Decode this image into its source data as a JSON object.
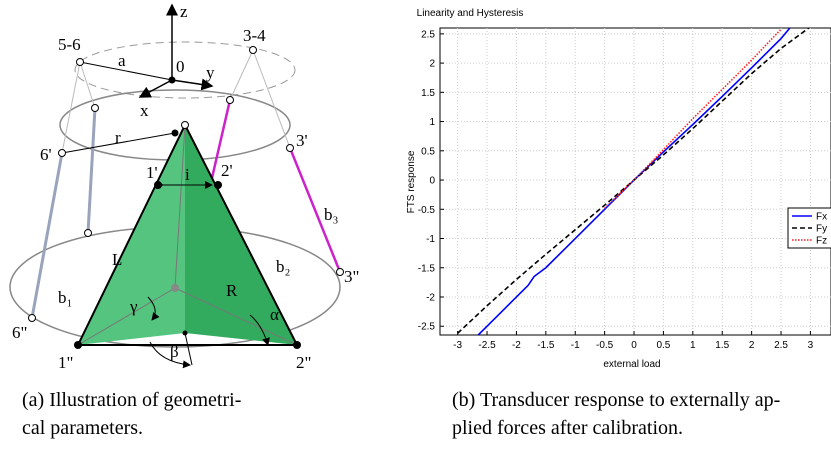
{
  "figure_a": {
    "labels": {
      "z": "z",
      "x": "x",
      "y": "y",
      "o": "0",
      "p56": "5-6",
      "p34": "3-4",
      "a": "a",
      "r": "r",
      "p6p": "6'",
      "p3p": "3'",
      "p1p": "1'",
      "p2p": "2'",
      "i": "i",
      "L": "L",
      "b1": "b₁",
      "b2": "b₂",
      "b3": "b₃",
      "R": "R",
      "gamma": "γ",
      "alpha": "α",
      "beta": "β",
      "p1pp": "1\"",
      "p2pp": "2\"",
      "p3pp": "3\"",
      "p6pp": "6\""
    }
  },
  "chart_data": {
    "type": "line",
    "title": "Linearity and Hysteresis",
    "x_label": "external load",
    "y_label": "FTS response",
    "xlim": [
      -3.3,
      3.35
    ],
    "ylim": [
      -2.65,
      2.6
    ],
    "xticks": [
      -3,
      -2.5,
      -2,
      -1.5,
      -1,
      -0.5,
      0,
      0.5,
      1,
      1.5,
      2,
      2.5,
      3
    ],
    "yticks": [
      -2.5,
      -2,
      -1.5,
      -1,
      -0.5,
      0,
      0.5,
      1,
      1.5,
      2,
      2.5
    ],
    "grid": true,
    "legend": "right",
    "series": [
      {
        "name": "Fx",
        "color": "#0000ff",
        "dash": "solid",
        "x": [
          -2.65,
          -2.3,
          -2.0,
          -1.8,
          -1.7,
          -1.5,
          -1.0,
          -0.5,
          0,
          0.5,
          1,
          1.5,
          2,
          2.5,
          2.65
        ],
        "values": [
          -2.65,
          -2.3,
          -2.0,
          -1.8,
          -1.65,
          -1.5,
          -1.0,
          -0.5,
          0,
          0.48,
          0.95,
          1.43,
          1.92,
          2.42,
          2.6
        ]
      },
      {
        "name": "Fy",
        "color": "#000000",
        "dash": "dashed",
        "x": [
          -3,
          -2.5,
          -2,
          -1.5,
          -1,
          -0.5,
          0,
          0.5,
          1,
          1.5,
          2,
          2.5,
          3
        ],
        "values": [
          -2.62,
          -2.15,
          -1.7,
          -1.27,
          -0.85,
          -0.43,
          0,
          0.43,
          0.88,
          1.35,
          1.82,
          2.25,
          2.62
        ]
      },
      {
        "name": "Fz",
        "color": "#ff2020",
        "dash": "dotted",
        "x": [
          -0.5,
          0,
          0.5,
          1,
          1.5,
          2,
          2.5
        ],
        "values": [
          -0.48,
          0,
          0.52,
          1.05,
          1.55,
          2.05,
          2.58
        ]
      }
    ]
  },
  "captions": {
    "a": [
      "(a) Illustration of geometri-",
      "cal parameters."
    ],
    "b": [
      "(b) Transducer response to externally ap-",
      "plied forces after calibration."
    ]
  }
}
